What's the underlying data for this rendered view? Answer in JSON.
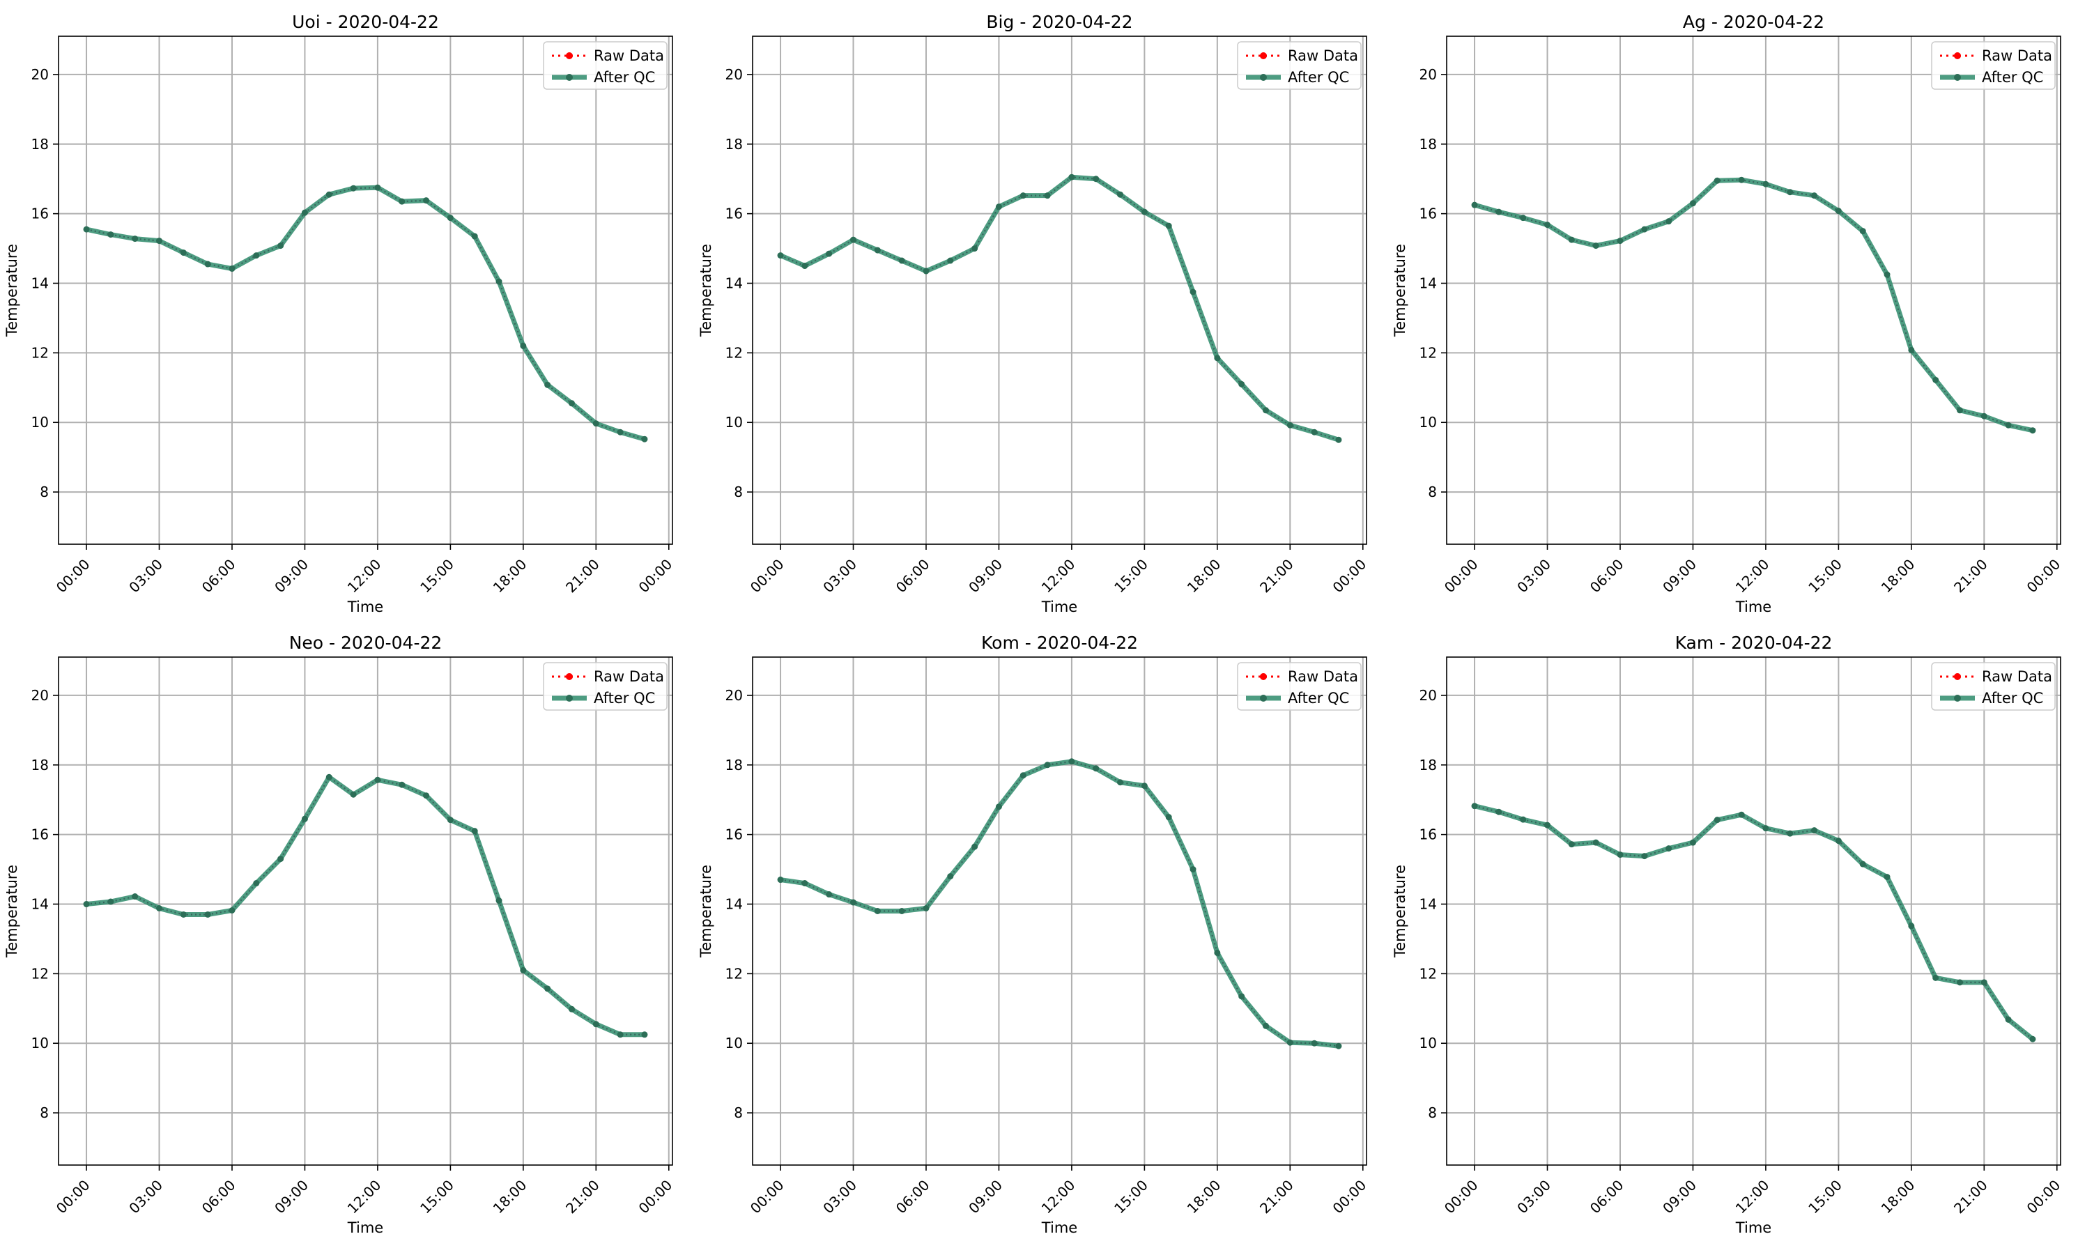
{
  "chart_data": [
    {
      "type": "line",
      "title": "Uoi - 2020-04-22",
      "xlabel": "Time",
      "ylabel": "Temperature",
      "x_hours": [
        0,
        1,
        2,
        3,
        4,
        5,
        6,
        7,
        8,
        9,
        10,
        11,
        12,
        13,
        14,
        15,
        16,
        17,
        18,
        19,
        20,
        21,
        22,
        23
      ],
      "xtick_hours": [
        0,
        3,
        6,
        9,
        12,
        15,
        18,
        21,
        24
      ],
      "xtick_labels": [
        "00:00",
        "03:00",
        "06:00",
        "09:00",
        "12:00",
        "15:00",
        "18:00",
        "21:00",
        "00:00"
      ],
      "yticks": [
        8,
        10,
        12,
        14,
        16,
        18,
        20
      ],
      "ylim": [
        6.5,
        21.1
      ],
      "xlim": [
        -1.15,
        24.15
      ],
      "legend": "top-right",
      "grid": true,
      "series": [
        {
          "name": "Raw Data",
          "style": "dotted",
          "color": "#ff0000",
          "values": [
            15.55,
            15.4,
            15.28,
            15.22,
            14.88,
            14.55,
            14.42,
            14.8,
            15.08,
            16.03,
            16.55,
            16.73,
            16.75,
            16.35,
            16.38,
            15.88,
            15.35,
            14.05,
            12.2,
            11.08,
            10.55,
            9.97,
            9.72,
            9.52
          ]
        },
        {
          "name": "After QC",
          "style": "solid",
          "color": "#2e8b6b",
          "values": [
            15.55,
            15.4,
            15.28,
            15.22,
            14.88,
            14.55,
            14.42,
            14.8,
            15.08,
            16.03,
            16.55,
            16.73,
            16.75,
            16.35,
            16.38,
            15.88,
            15.35,
            14.05,
            12.2,
            11.08,
            10.55,
            9.97,
            9.72,
            9.52
          ]
        }
      ]
    },
    {
      "type": "line",
      "title": "Big - 2020-04-22",
      "xlabel": "Time",
      "ylabel": "Temperature",
      "x_hours": [
        0,
        1,
        2,
        3,
        4,
        5,
        6,
        7,
        8,
        9,
        10,
        11,
        12,
        13,
        14,
        15,
        16,
        17,
        18,
        19,
        20,
        21,
        22,
        23
      ],
      "xtick_hours": [
        0,
        3,
        6,
        9,
        12,
        15,
        18,
        21,
        24
      ],
      "xtick_labels": [
        "00:00",
        "03:00",
        "06:00",
        "09:00",
        "12:00",
        "15:00",
        "18:00",
        "21:00",
        "00:00"
      ],
      "yticks": [
        8,
        10,
        12,
        14,
        16,
        18,
        20
      ],
      "ylim": [
        6.5,
        21.1
      ],
      "xlim": [
        -1.15,
        24.15
      ],
      "legend": "top-right",
      "grid": true,
      "series": [
        {
          "name": "Raw Data",
          "style": "dotted",
          "color": "#ff0000",
          "values": [
            14.8,
            14.5,
            14.85,
            15.25,
            14.95,
            14.65,
            14.35,
            14.65,
            15.0,
            16.2,
            16.52,
            16.52,
            17.05,
            17.0,
            16.55,
            16.05,
            15.65,
            13.75,
            11.85,
            11.1,
            10.35,
            9.92,
            9.72,
            9.5
          ]
        },
        {
          "name": "After QC",
          "style": "solid",
          "color": "#2e8b6b",
          "values": [
            14.8,
            14.5,
            14.85,
            15.25,
            14.95,
            14.65,
            14.35,
            14.65,
            15.0,
            16.2,
            16.52,
            16.52,
            17.05,
            17.0,
            16.55,
            16.05,
            15.65,
            13.75,
            11.85,
            11.1,
            10.35,
            9.92,
            9.72,
            9.5
          ]
        }
      ]
    },
    {
      "type": "line",
      "title": "Ag - 2020-04-22",
      "xlabel": "Time",
      "ylabel": "Temperature",
      "x_hours": [
        0,
        1,
        2,
        3,
        4,
        5,
        6,
        7,
        8,
        9,
        10,
        11,
        12,
        13,
        14,
        15,
        16,
        17,
        18,
        19,
        20,
        21,
        22,
        23
      ],
      "xtick_hours": [
        0,
        3,
        6,
        9,
        12,
        15,
        18,
        21,
        24
      ],
      "xtick_labels": [
        "00:00",
        "03:00",
        "06:00",
        "09:00",
        "12:00",
        "15:00",
        "18:00",
        "21:00",
        "00:00"
      ],
      "yticks": [
        8,
        10,
        12,
        14,
        16,
        18,
        20
      ],
      "ylim": [
        6.5,
        21.1
      ],
      "xlim": [
        -1.15,
        24.15
      ],
      "legend": "top-right",
      "grid": true,
      "series": [
        {
          "name": "Raw Data",
          "style": "dotted",
          "color": "#ff0000",
          "values": [
            16.25,
            16.05,
            15.88,
            15.68,
            15.25,
            15.08,
            15.22,
            15.55,
            15.78,
            16.3,
            16.95,
            16.97,
            16.85,
            16.62,
            16.52,
            16.08,
            15.5,
            14.25,
            12.08,
            11.22,
            10.35,
            10.18,
            9.92,
            9.77
          ]
        },
        {
          "name": "After QC",
          "style": "solid",
          "color": "#2e8b6b",
          "values": [
            16.25,
            16.05,
            15.88,
            15.68,
            15.25,
            15.08,
            15.22,
            15.55,
            15.78,
            16.3,
            16.95,
            16.97,
            16.85,
            16.62,
            16.52,
            16.08,
            15.5,
            14.25,
            12.08,
            11.22,
            10.35,
            10.18,
            9.92,
            9.77
          ]
        }
      ]
    },
    {
      "type": "line",
      "title": "Neo - 2020-04-22",
      "xlabel": "Time",
      "ylabel": "Temperature",
      "x_hours": [
        0,
        1,
        2,
        3,
        4,
        5,
        6,
        7,
        8,
        9,
        10,
        11,
        12,
        13,
        14,
        15,
        16,
        17,
        18,
        19,
        20,
        21,
        22,
        23
      ],
      "xtick_hours": [
        0,
        3,
        6,
        9,
        12,
        15,
        18,
        21,
        24
      ],
      "xtick_labels": [
        "00:00",
        "03:00",
        "06:00",
        "09:00",
        "12:00",
        "15:00",
        "18:00",
        "21:00",
        "00:00"
      ],
      "yticks": [
        8,
        10,
        12,
        14,
        16,
        18,
        20
      ],
      "ylim": [
        6.5,
        21.1
      ],
      "xlim": [
        -1.15,
        24.15
      ],
      "legend": "top-right",
      "grid": true,
      "series": [
        {
          "name": "Raw Data",
          "style": "dotted",
          "color": "#ff0000",
          "values": [
            14.0,
            14.07,
            14.22,
            13.88,
            13.7,
            13.7,
            13.82,
            14.6,
            15.3,
            16.45,
            17.65,
            17.15,
            17.57,
            17.43,
            17.12,
            16.42,
            16.1,
            14.1,
            12.1,
            11.57,
            10.98,
            10.55,
            10.25,
            10.25
          ]
        },
        {
          "name": "After QC",
          "style": "solid",
          "color": "#2e8b6b",
          "values": [
            14.0,
            14.07,
            14.22,
            13.88,
            13.7,
            13.7,
            13.82,
            14.6,
            15.3,
            16.45,
            17.65,
            17.15,
            17.57,
            17.43,
            17.12,
            16.42,
            16.1,
            14.1,
            12.1,
            11.57,
            10.98,
            10.55,
            10.25,
            10.25
          ]
        }
      ]
    },
    {
      "type": "line",
      "title": "Kom - 2020-04-22",
      "xlabel": "Time",
      "ylabel": "Temperature",
      "x_hours": [
        0,
        1,
        2,
        3,
        4,
        5,
        6,
        7,
        8,
        9,
        10,
        11,
        12,
        13,
        14,
        15,
        16,
        17,
        18,
        19,
        20,
        21,
        22,
        23
      ],
      "xtick_hours": [
        0,
        3,
        6,
        9,
        12,
        15,
        18,
        21,
        24
      ],
      "xtick_labels": [
        "00:00",
        "03:00",
        "06:00",
        "09:00",
        "12:00",
        "15:00",
        "18:00",
        "21:00",
        "00:00"
      ],
      "yticks": [
        8,
        10,
        12,
        14,
        16,
        18,
        20
      ],
      "ylim": [
        6.5,
        21.1
      ],
      "xlim": [
        -1.15,
        24.15
      ],
      "legend": "top-right",
      "grid": true,
      "series": [
        {
          "name": "Raw Data",
          "style": "dotted",
          "color": "#ff0000",
          "values": [
            14.7,
            14.6,
            14.28,
            14.05,
            13.8,
            13.8,
            13.88,
            14.8,
            15.65,
            16.8,
            17.7,
            18.0,
            18.1,
            17.9,
            17.5,
            17.4,
            16.5,
            15.0,
            12.6,
            11.35,
            10.5,
            10.02,
            10.0,
            9.92
          ]
        },
        {
          "name": "After QC",
          "style": "solid",
          "color": "#2e8b6b",
          "values": [
            14.7,
            14.6,
            14.28,
            14.05,
            13.8,
            13.8,
            13.88,
            14.8,
            15.65,
            16.8,
            17.7,
            18.0,
            18.1,
            17.9,
            17.5,
            17.4,
            16.5,
            15.0,
            12.6,
            11.35,
            10.5,
            10.02,
            10.0,
            9.92
          ]
        }
      ]
    },
    {
      "type": "line",
      "title": "Kam - 2020-04-22",
      "xlabel": "Time",
      "ylabel": "Temperature",
      "x_hours": [
        0,
        1,
        2,
        3,
        4,
        5,
        6,
        7,
        8,
        9,
        10,
        11,
        12,
        13,
        14,
        15,
        16,
        17,
        18,
        19,
        20,
        21,
        22,
        23
      ],
      "xtick_hours": [
        0,
        3,
        6,
        9,
        12,
        15,
        18,
        21,
        24
      ],
      "xtick_labels": [
        "00:00",
        "03:00",
        "06:00",
        "09:00",
        "12:00",
        "15:00",
        "18:00",
        "21:00",
        "00:00"
      ],
      "yticks": [
        8,
        10,
        12,
        14,
        16,
        18,
        20
      ],
      "ylim": [
        6.5,
        21.1
      ],
      "xlim": [
        -1.15,
        24.15
      ],
      "legend": "top-right",
      "grid": true,
      "series": [
        {
          "name": "Raw Data",
          "style": "dotted",
          "color": "#ff0000",
          "values": [
            16.82,
            16.65,
            16.43,
            16.27,
            15.72,
            15.77,
            15.42,
            15.38,
            15.6,
            15.77,
            16.42,
            16.57,
            16.18,
            16.03,
            16.12,
            15.82,
            15.15,
            14.78,
            13.37,
            11.88,
            11.75,
            11.75,
            10.68,
            10.12
          ]
        },
        {
          "name": "After QC",
          "style": "solid",
          "color": "#2e8b6b",
          "values": [
            16.82,
            16.65,
            16.43,
            16.27,
            15.72,
            15.77,
            15.42,
            15.38,
            15.6,
            15.77,
            16.42,
            16.57,
            16.18,
            16.03,
            16.12,
            15.82,
            15.15,
            14.78,
            13.37,
            11.88,
            11.75,
            11.75,
            10.68,
            10.12
          ]
        }
      ]
    }
  ]
}
